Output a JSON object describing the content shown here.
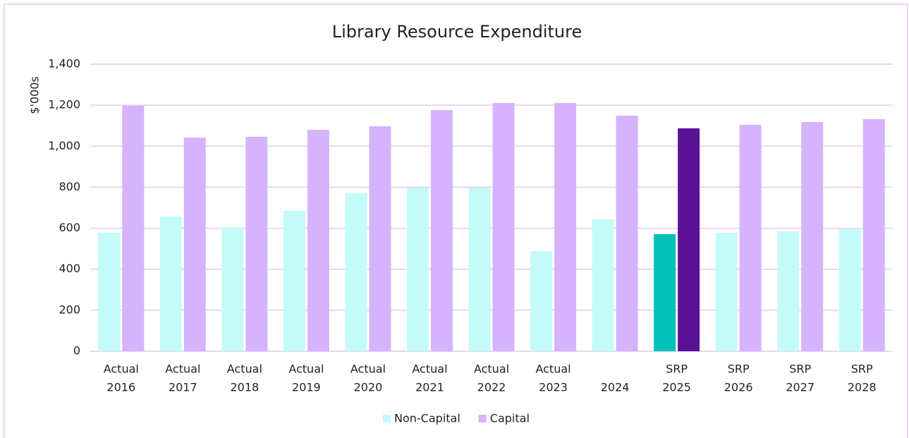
{
  "chart_data": {
    "type": "bar",
    "title": "Library Resource Expenditure",
    "y_label": "$'000s",
    "categories": [
      [
        "Actual",
        "2016"
      ],
      [
        "Actual",
        "2017"
      ],
      [
        "Actual",
        "2018"
      ],
      [
        "Actual",
        "2019"
      ],
      [
        "Actual",
        "2020"
      ],
      [
        "Actual",
        "2021"
      ],
      [
        "Actual",
        "2022"
      ],
      [
        "Actual",
        "2023"
      ],
      [
        "2024"
      ],
      [
        "SRP",
        "2025"
      ],
      [
        "SRP",
        "2026"
      ],
      [
        "SRP",
        "2027"
      ],
      [
        "SRP",
        "2028"
      ]
    ],
    "series": [
      {
        "name": "Non-Capital",
        "color": "#c4fbf8",
        "values": [
          578,
          657,
          605,
          685,
          771,
          798,
          798,
          488,
          643,
          571,
          578,
          585,
          595
        ],
        "colors": [
          null,
          null,
          null,
          null,
          null,
          null,
          null,
          null,
          null,
          "#00c2b8",
          null,
          null,
          null
        ]
      },
      {
        "name": "Capital",
        "color": "#d5b3fd",
        "values": [
          1197,
          1042,
          1046,
          1080,
          1097,
          1176,
          1211,
          1211,
          1149,
          1087,
          1104,
          1118,
          1132
        ],
        "colors": [
          null,
          null,
          null,
          null,
          null,
          null,
          null,
          null,
          null,
          "#5b1396",
          null,
          null,
          null
        ]
      }
    ],
    "ylim": [
      0,
      1400
    ],
    "yticks": [
      0,
      200,
      400,
      600,
      800,
      {
        "value": 1000,
        "label": "1,000"
      },
      {
        "value": 1200,
        "label": "1,200"
      },
      {
        "value": 1400,
        "label": "1,400"
      }
    ],
    "grid": true,
    "legend": "bottom"
  }
}
